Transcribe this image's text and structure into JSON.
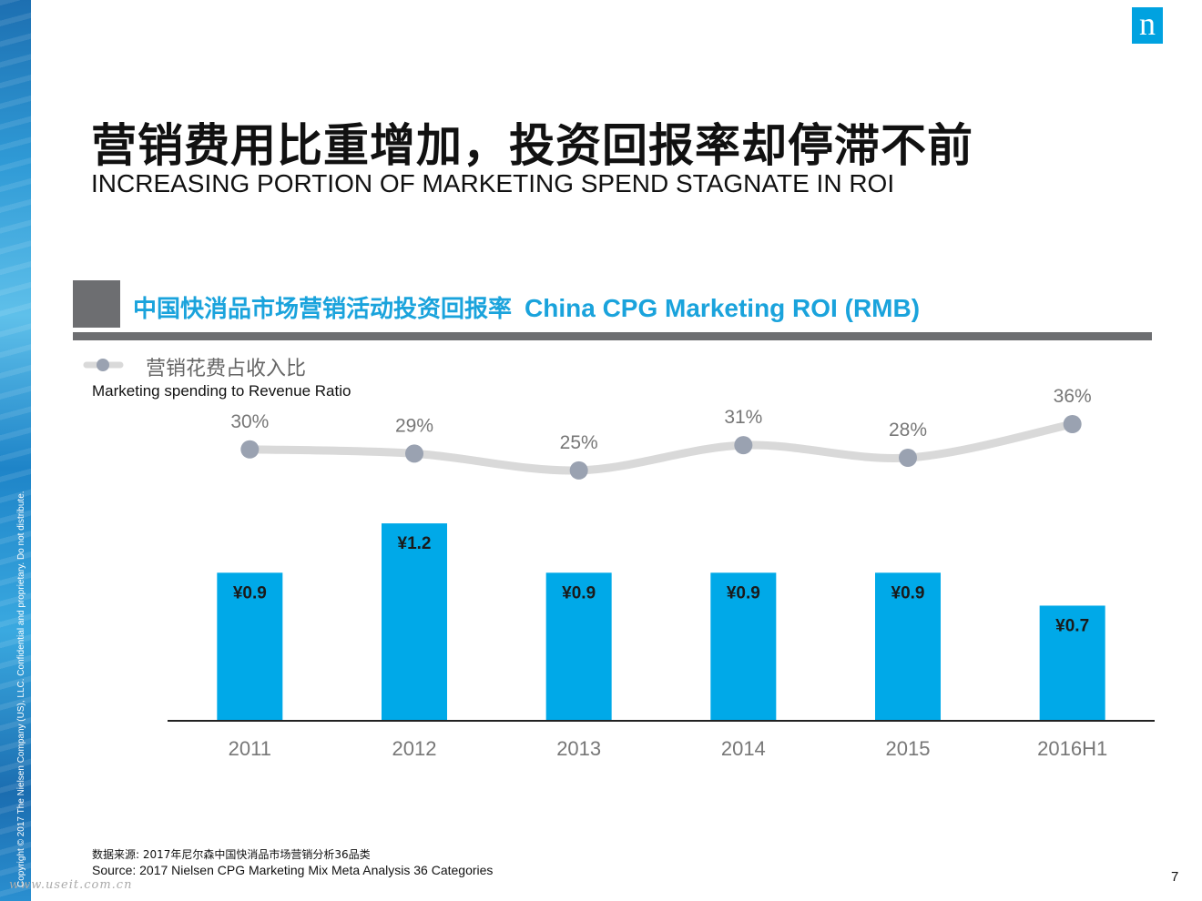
{
  "slide": {
    "logo": "n",
    "title_cn": "营销费用比重增加，投资回报率却停滞不前",
    "title_en": "INCREASING PORTION OF MARKETING SPEND STAGNATE IN ROI",
    "section_title_cn": "中国快消品市场营销活动投资回报率",
    "section_title_en": "China CPG Marketing ROI (RMB)",
    "legend_cn": "营销花费占收入比",
    "legend_en": "Marketing spending to Revenue Ratio",
    "source_cn": "数据来源: 2017年尼尔森中国快消品市场营销分析36品类",
    "source_en": "Source: 2017 Nielsen CPG Marketing Mix Meta Analysis 36 Categories",
    "page_number": "7",
    "copyright": "Copyright © 2017 The Nielsen Company (US), LLC. Confidential and proprietary. Do not distribute.",
    "watermark": "www.useit.com.cn"
  },
  "chart_data": {
    "type": "bar",
    "categories": [
      "2011",
      "2012",
      "2013",
      "2014",
      "2015",
      "2016H1"
    ],
    "series": [
      {
        "type": "bar",
        "values": [
          0.9,
          1.2,
          0.9,
          0.9,
          0.9,
          0.7
        ],
        "labels": [
          "¥0.9",
          "¥1.2",
          "¥0.9",
          "¥0.9",
          "¥0.9",
          "¥0.7"
        ],
        "color": "#00a9e8"
      },
      {
        "name": "营销花费占收入比",
        "type": "line",
        "values": [
          30,
          29,
          25,
          31,
          28,
          36
        ],
        "labels": [
          "30%",
          "29%",
          "25%",
          "31%",
          "28%",
          "36%"
        ],
        "line_color": "#d9d9d9",
        "marker_color": "#9aa2b1"
      }
    ],
    "bar_axis_range": [
      0,
      1.56
    ],
    "line_axis_range": [
      20,
      36
    ],
    "legend_position": "top-left",
    "grid": false
  }
}
